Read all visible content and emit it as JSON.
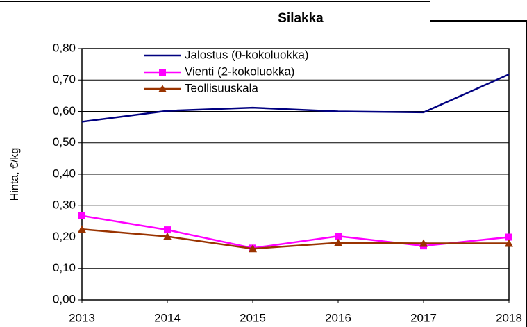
{
  "chart_data": {
    "type": "line",
    "title": "Silakka",
    "y_label": "Hinta, €/kg",
    "categories": [
      "2013",
      "2014",
      "2015",
      "2016",
      "2017",
      "2018"
    ],
    "series": [
      {
        "name": "Jalostus (0-kokoluokka)",
        "color": "#000080",
        "marker": "none",
        "values": [
          0.567,
          0.602,
          0.612,
          0.6,
          0.597,
          0.718
        ]
      },
      {
        "name": "Vienti (2-kokoluokka)",
        "color": "#ff00ff",
        "marker": "square",
        "values": [
          0.268,
          0.223,
          0.165,
          0.203,
          0.172,
          0.2
        ]
      },
      {
        "name": "Teollisuuskala",
        "color": "#993300",
        "marker": "triangle",
        "values": [
          0.225,
          0.202,
          0.163,
          0.182,
          0.18,
          0.18
        ]
      }
    ],
    "ylim": [
      0,
      0.8
    ],
    "yticks": [
      {
        "value": 0,
        "label": "0,00"
      },
      {
        "value": 0.1,
        "label": "0,10"
      },
      {
        "value": 0.2,
        "label": "0,20"
      },
      {
        "value": 0.3,
        "label": "0,30"
      },
      {
        "value": 0.4,
        "label": "0,40"
      },
      {
        "value": 0.5,
        "label": "0,50"
      },
      {
        "value": 0.6,
        "label": "0,60"
      },
      {
        "value": 0.7,
        "label": "0,70"
      },
      {
        "value": 0.8,
        "label": "0,80"
      }
    ],
    "grid": true,
    "legend": "top-left"
  }
}
